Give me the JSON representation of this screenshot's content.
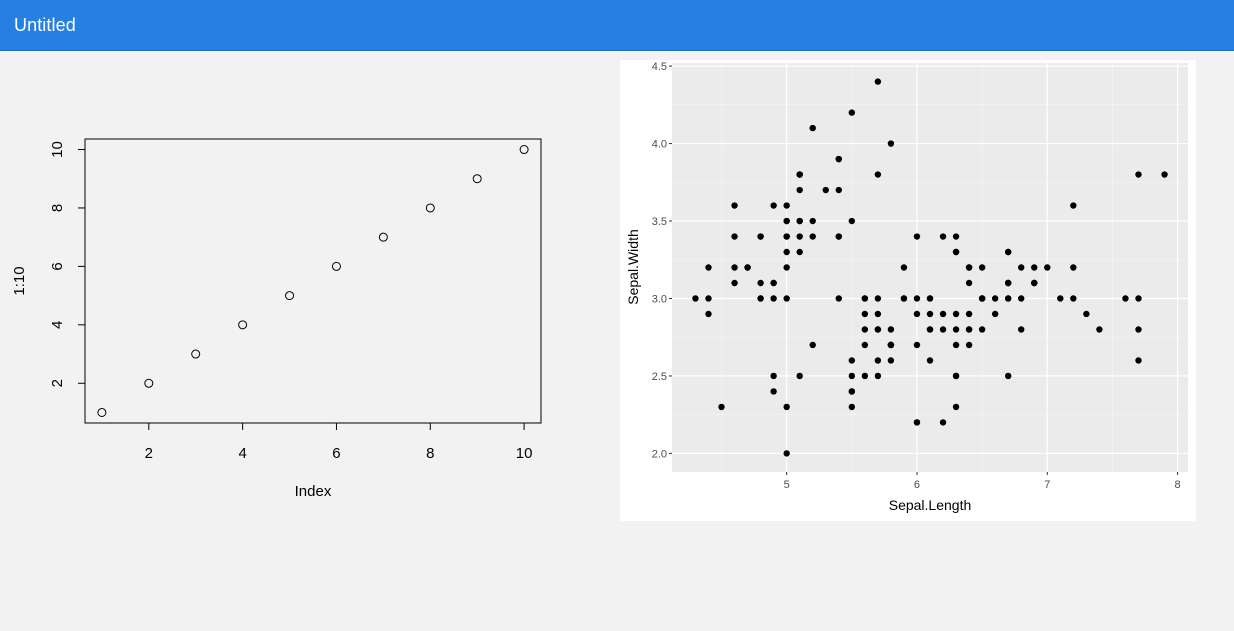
{
  "app": {
    "title": "Untitled"
  },
  "charts": [
    {
      "type": "scatter",
      "style": "base-r",
      "xlabel": "Index",
      "ylabel": "1:10",
      "x": [
        1,
        2,
        3,
        4,
        5,
        6,
        7,
        8,
        9,
        10
      ],
      "y": [
        1,
        2,
        3,
        4,
        5,
        6,
        7,
        8,
        9,
        10
      ],
      "xlim": [
        0.64,
        10.36
      ],
      "ylim": [
        0.64,
        10.36
      ],
      "xticks": [
        2,
        4,
        6,
        8,
        10
      ],
      "yticks": [
        2,
        4,
        6,
        8,
        10
      ],
      "marker": "open-circle",
      "grid": false,
      "legend": "none"
    },
    {
      "type": "scatter",
      "style": "ggplot2",
      "xlabel": "Sepal.Length",
      "ylabel": "Sepal.Width",
      "xlim": [
        4.12,
        8.08
      ],
      "ylim": [
        1.88,
        4.52
      ],
      "xticks": [
        5,
        6,
        7,
        8
      ],
      "yticks": [
        2.0,
        2.5,
        3.0,
        3.5,
        4.0,
        4.5
      ],
      "ytick_labels": [
        "2.0",
        "2.5",
        "3.0",
        "3.5",
        "4.0",
        "4.5"
      ],
      "marker": "filled-circle",
      "grid": true,
      "background": "#ebebeb",
      "legend": "none",
      "points": [
        [
          5.1,
          3.5
        ],
        [
          4.9,
          3.0
        ],
        [
          4.7,
          3.2
        ],
        [
          4.6,
          3.1
        ],
        [
          5.0,
          3.6
        ],
        [
          5.4,
          3.9
        ],
        [
          4.6,
          3.4
        ],
        [
          5.0,
          3.4
        ],
        [
          4.4,
          2.9
        ],
        [
          4.9,
          3.1
        ],
        [
          5.4,
          3.7
        ],
        [
          4.8,
          3.4
        ],
        [
          4.8,
          3.0
        ],
        [
          4.3,
          3.0
        ],
        [
          5.8,
          4.0
        ],
        [
          5.7,
          4.4
        ],
        [
          5.4,
          3.9
        ],
        [
          5.1,
          3.5
        ],
        [
          5.7,
          3.8
        ],
        [
          5.1,
          3.8
        ],
        [
          5.4,
          3.4
        ],
        [
          5.1,
          3.7
        ],
        [
          4.6,
          3.6
        ],
        [
          5.1,
          3.3
        ],
        [
          4.8,
          3.4
        ],
        [
          5.0,
          3.0
        ],
        [
          5.0,
          3.4
        ],
        [
          5.2,
          3.5
        ],
        [
          5.2,
          3.4
        ],
        [
          4.7,
          3.2
        ],
        [
          4.8,
          3.1
        ],
        [
          5.4,
          3.4
        ],
        [
          5.2,
          4.1
        ],
        [
          5.5,
          4.2
        ],
        [
          4.9,
          3.1
        ],
        [
          5.0,
          3.2
        ],
        [
          5.5,
          3.5
        ],
        [
          4.9,
          3.6
        ],
        [
          4.4,
          3.0
        ],
        [
          5.1,
          3.4
        ],
        [
          5.0,
          3.5
        ],
        [
          4.5,
          2.3
        ],
        [
          4.4,
          3.2
        ],
        [
          5.0,
          3.5
        ],
        [
          5.1,
          3.8
        ],
        [
          4.8,
          3.0
        ],
        [
          5.1,
          3.8
        ],
        [
          4.6,
          3.2
        ],
        [
          5.3,
          3.7
        ],
        [
          5.0,
          3.3
        ],
        [
          7.0,
          3.2
        ],
        [
          6.4,
          3.2
        ],
        [
          6.9,
          3.1
        ],
        [
          5.5,
          2.3
        ],
        [
          6.5,
          2.8
        ],
        [
          5.7,
          2.8
        ],
        [
          6.3,
          3.3
        ],
        [
          4.9,
          2.4
        ],
        [
          6.6,
          2.9
        ],
        [
          5.2,
          2.7
        ],
        [
          5.0,
          2.0
        ],
        [
          5.9,
          3.0
        ],
        [
          6.0,
          2.2
        ],
        [
          6.1,
          2.9
        ],
        [
          5.6,
          2.9
        ],
        [
          6.7,
          3.1
        ],
        [
          5.6,
          3.0
        ],
        [
          5.8,
          2.7
        ],
        [
          6.2,
          2.2
        ],
        [
          5.6,
          2.5
        ],
        [
          5.9,
          3.2
        ],
        [
          6.1,
          2.8
        ],
        [
          6.3,
          2.5
        ],
        [
          6.1,
          2.8
        ],
        [
          6.4,
          2.9
        ],
        [
          6.6,
          3.0
        ],
        [
          6.8,
          2.8
        ],
        [
          6.7,
          3.0
        ],
        [
          6.0,
          2.9
        ],
        [
          5.7,
          2.6
        ],
        [
          5.5,
          2.4
        ],
        [
          5.5,
          2.4
        ],
        [
          5.8,
          2.7
        ],
        [
          6.0,
          2.7
        ],
        [
          5.4,
          3.0
        ],
        [
          6.0,
          3.4
        ],
        [
          6.7,
          3.1
        ],
        [
          6.3,
          2.3
        ],
        [
          5.6,
          3.0
        ],
        [
          5.5,
          2.5
        ],
        [
          5.5,
          2.6
        ],
        [
          6.1,
          3.0
        ],
        [
          5.8,
          2.6
        ],
        [
          5.0,
          2.3
        ],
        [
          5.6,
          2.7
        ],
        [
          5.7,
          3.0
        ],
        [
          5.7,
          2.9
        ],
        [
          6.2,
          2.9
        ],
        [
          5.1,
          2.5
        ],
        [
          5.7,
          2.8
        ],
        [
          6.3,
          3.3
        ],
        [
          5.8,
          2.7
        ],
        [
          7.1,
          3.0
        ],
        [
          6.3,
          2.9
        ],
        [
          6.5,
          3.0
        ],
        [
          7.6,
          3.0
        ],
        [
          4.9,
          2.5
        ],
        [
          7.3,
          2.9
        ],
        [
          6.7,
          2.5
        ],
        [
          7.2,
          3.6
        ],
        [
          6.5,
          3.2
        ],
        [
          6.4,
          2.7
        ],
        [
          6.8,
          3.0
        ],
        [
          5.7,
          2.5
        ],
        [
          5.8,
          2.8
        ],
        [
          6.4,
          3.2
        ],
        [
          6.5,
          3.0
        ],
        [
          7.7,
          3.8
        ],
        [
          7.7,
          2.6
        ],
        [
          6.0,
          2.2
        ],
        [
          6.9,
          3.2
        ],
        [
          5.6,
          2.8
        ],
        [
          7.7,
          2.8
        ],
        [
          6.3,
          2.7
        ],
        [
          6.7,
          3.3
        ],
        [
          7.2,
          3.2
        ],
        [
          6.2,
          2.8
        ],
        [
          6.1,
          3.0
        ],
        [
          6.4,
          2.8
        ],
        [
          7.2,
          3.0
        ],
        [
          7.4,
          2.8
        ],
        [
          7.9,
          3.8
        ],
        [
          6.4,
          2.8
        ],
        [
          6.3,
          2.8
        ],
        [
          6.1,
          2.6
        ],
        [
          7.7,
          3.0
        ],
        [
          6.3,
          3.4
        ],
        [
          6.4,
          3.1
        ],
        [
          6.0,
          3.0
        ],
        [
          6.9,
          3.1
        ],
        [
          6.7,
          3.1
        ],
        [
          6.9,
          3.1
        ],
        [
          5.8,
          2.7
        ],
        [
          6.8,
          3.2
        ],
        [
          6.7,
          3.3
        ],
        [
          6.7,
          3.0
        ],
        [
          6.3,
          2.5
        ],
        [
          6.5,
          3.0
        ],
        [
          6.2,
          3.4
        ],
        [
          5.9,
          3.0
        ]
      ]
    }
  ]
}
